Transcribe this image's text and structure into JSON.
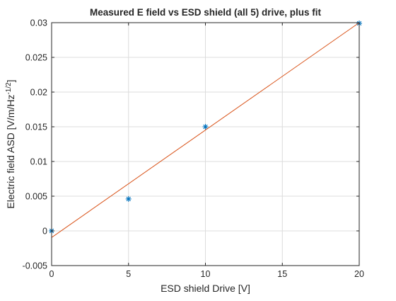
{
  "chart_data": {
    "type": "scatter",
    "title": "Measured E field vs ESD shield (all 5) drive, plus fit",
    "xlabel": "ESD shield Drive [V]",
    "ylabel_main": "Electric field ASD [V/m/Hz",
    "ylabel_sup": "-1/2",
    "ylabel_close": "]",
    "xlim": [
      0,
      20
    ],
    "ylim": [
      -0.005,
      0.03
    ],
    "grid": true,
    "x_ticks": [
      {
        "value": 0,
        "label": "0"
      },
      {
        "value": 5,
        "label": "5"
      },
      {
        "value": 10,
        "label": "10"
      },
      {
        "value": 15,
        "label": "15"
      },
      {
        "value": 20,
        "label": "20"
      }
    ],
    "y_ticks": [
      {
        "value": -0.005,
        "label": "-0.005"
      },
      {
        "value": 0,
        "label": "0"
      },
      {
        "value": 0.005,
        "label": "0.005"
      },
      {
        "value": 0.01,
        "label": "0.01"
      },
      {
        "value": 0.015,
        "label": "0.015"
      },
      {
        "value": 0.02,
        "label": "0.02"
      },
      {
        "value": 0.025,
        "label": "0.025"
      },
      {
        "value": 0.03,
        "label": "0.03"
      }
    ],
    "series": [
      {
        "kind": "markers",
        "marker": "asterisk",
        "color": "#0072BD",
        "points": [
          {
            "x": 0,
            "y": 0.0
          },
          {
            "x": 5,
            "y": 0.0046
          },
          {
            "x": 10,
            "y": 0.015
          },
          {
            "x": 20,
            "y": 0.0299
          }
        ]
      },
      {
        "kind": "line",
        "color": "#D95319",
        "points": [
          {
            "x": 0,
            "y": -0.00095
          },
          {
            "x": 20,
            "y": 0.03
          }
        ]
      }
    ]
  }
}
